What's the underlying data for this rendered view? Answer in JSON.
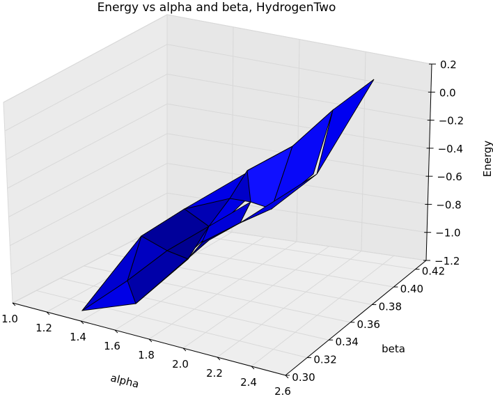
{
  "chart_data": {
    "type": "surface3d",
    "title": "Energy vs alpha and beta, HydrogenTwo",
    "xlabel": "alpha",
    "ylabel": "beta",
    "zlabel": "Energy",
    "xlim": [
      1.0,
      2.6
    ],
    "ylim": [
      0.3,
      0.43
    ],
    "zlim": [
      -1.2,
      0.2
    ],
    "x_ticks": [
      "1.0",
      "1.2",
      "1.4",
      "1.6",
      "1.8",
      "2.0",
      "2.2",
      "2.4",
      "2.6"
    ],
    "y_ticks": [
      "0.30",
      "0.32",
      "0.34",
      "0.36",
      "0.38",
      "0.40",
      "0.42"
    ],
    "z_ticks": [
      "−1.2",
      "−1.0",
      "−0.8",
      "−0.6",
      "−0.4",
      "−0.2",
      "0.0",
      "0.2"
    ],
    "surface_color": "#0000ff",
    "pane_color": "#f2f2f2",
    "grid": true
  }
}
